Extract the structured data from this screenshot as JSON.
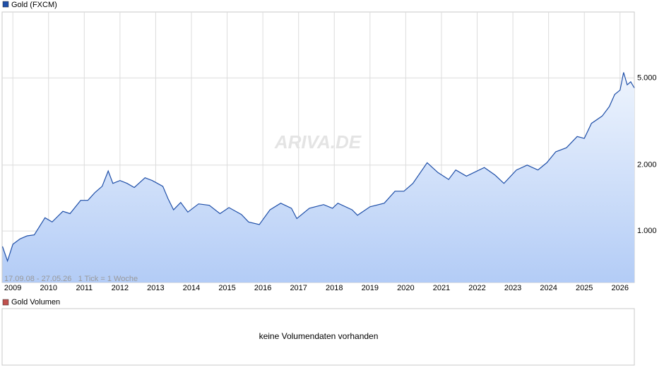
{
  "chart_data": {
    "type": "line",
    "series": [
      {
        "name": "Gold (FXCM)",
        "color": "#1f4fa8",
        "x": [
          2008.71,
          2008.85,
          2009.0,
          2009.2,
          2009.4,
          2009.6,
          2009.9,
          2010.1,
          2010.4,
          2010.6,
          2010.9,
          2011.1,
          2011.3,
          2011.5,
          2011.67,
          2011.8,
          2012.0,
          2012.2,
          2012.4,
          2012.7,
          2012.9,
          2013.2,
          2013.35,
          2013.5,
          2013.7,
          2013.9,
          2014.2,
          2014.5,
          2014.8,
          2015.05,
          2015.4,
          2015.6,
          2015.9,
          2016.2,
          2016.5,
          2016.8,
          2016.95,
          2017.3,
          2017.7,
          2017.95,
          2018.1,
          2018.5,
          2018.65,
          2019.0,
          2019.4,
          2019.7,
          2019.95,
          2020.2,
          2020.6,
          2020.9,
          2021.2,
          2021.4,
          2021.7,
          2022.2,
          2022.5,
          2022.75,
          2023.1,
          2023.4,
          2023.7,
          2023.95,
          2024.2,
          2024.5,
          2024.8,
          2025.0,
          2025.2,
          2025.5,
          2025.7,
          2025.85,
          2026.0,
          2026.1,
          2026.2,
          2026.3,
          2026.4
        ],
        "values": [
          850,
          730,
          870,
          920,
          950,
          960,
          1150,
          1100,
          1230,
          1200,
          1380,
          1380,
          1500,
          1600,
          1880,
          1650,
          1700,
          1650,
          1580,
          1750,
          1700,
          1600,
          1400,
          1250,
          1350,
          1220,
          1330,
          1310,
          1200,
          1280,
          1190,
          1100,
          1070,
          1250,
          1340,
          1270,
          1140,
          1270,
          1320,
          1270,
          1340,
          1250,
          1180,
          1290,
          1340,
          1520,
          1520,
          1650,
          2050,
          1850,
          1720,
          1900,
          1780,
          1950,
          1800,
          1650,
          1900,
          2000,
          1900,
          2050,
          2300,
          2400,
          2700,
          2650,
          3100,
          3350,
          3700,
          4200,
          4400,
          5300,
          4650,
          4800,
          4500
        ]
      }
    ],
    "xlim": [
      2008.7,
      2026.4
    ],
    "xticks": [
      2009,
      2010,
      2011,
      2012,
      2013,
      2014,
      2015,
      2016,
      2017,
      2018,
      2019,
      2020,
      2021,
      2022,
      2023,
      2024,
      2025,
      2026
    ],
    "ylim": [
      582,
      10000
    ],
    "yscale": "log",
    "yticks": [
      {
        "value": 1000,
        "label": "1.000"
      },
      {
        "value": 2000,
        "label": "2.000"
      },
      {
        "value": 5000,
        "label": "5.000"
      }
    ],
    "grid": true,
    "range_note": "17.09.08 - 27.05.26   1 Tick = 1 Woche",
    "watermark": "ARIVA.DE"
  },
  "volume_panel": {
    "legend": "Gold Volumen",
    "color": "#c0504d",
    "message": "keine Volumendaten vorhanden"
  }
}
